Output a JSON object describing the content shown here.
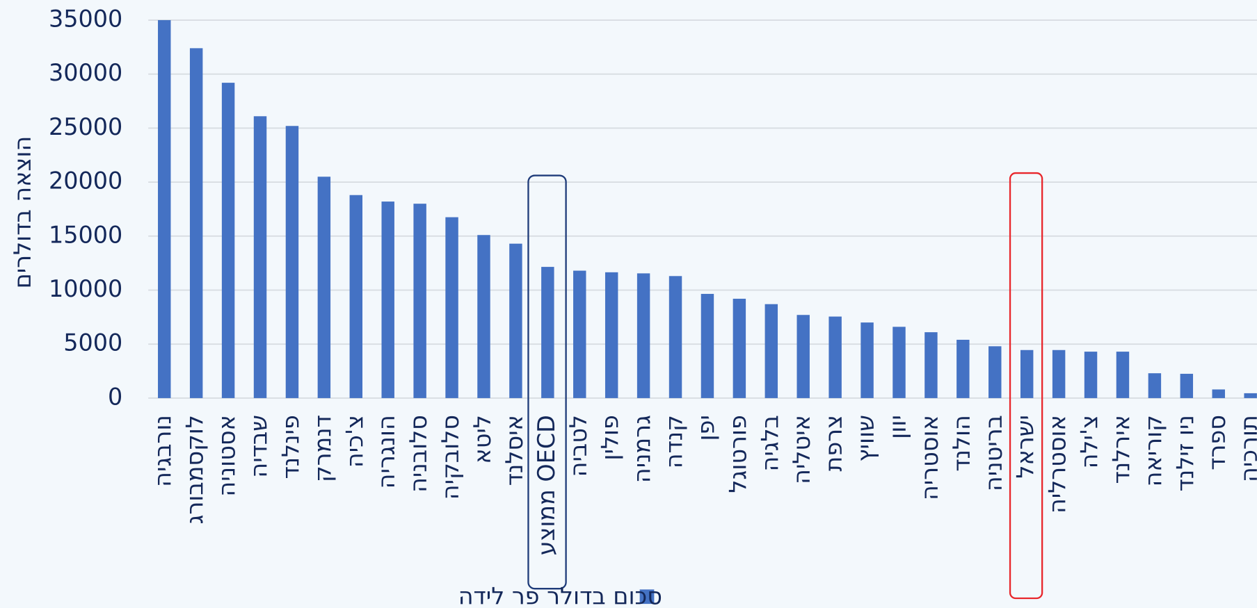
{
  "chart_data": {
    "type": "bar",
    "ylabel": "הוצאה בדולרים",
    "categories": [
      "נורבגיה",
      "לוקסמבורג",
      "אסטוניה",
      "שבדיה",
      "פינלנד",
      "דנמרק",
      "צ'כיה",
      "הונגריה",
      "סלובניה",
      "סלובקיה",
      "ליטא",
      "איסלנד",
      "ממוצע OECD",
      "לטביה",
      "פולין",
      "גרמניה",
      "קנדה",
      "יפן",
      "פורטוגל",
      "בלגיה",
      "איטליה",
      "צרפת",
      "שוויץ",
      "יוון",
      "אוסטריה",
      "הולנד",
      "בריטניה",
      "ישראל",
      "אוסטרליה",
      "צ'ילה",
      "אירלנד",
      "קוריאה",
      "ניו זילנד",
      "ספרד",
      "תורכיה"
    ],
    "series": [
      {
        "name": "סכום בדולר פר לידה",
        "color": "#4472c4",
        "values": [
          35000,
          32400,
          29200,
          26100,
          25200,
          20500,
          18800,
          18200,
          18000,
          16750,
          15100,
          14300,
          12150,
          11800,
          11650,
          11550,
          11300,
          9650,
          9200,
          8700,
          7700,
          7550,
          7000,
          6600,
          6100,
          5400,
          4800,
          4450,
          4450,
          4300,
          4300,
          2300,
          2250,
          800,
          450
        ]
      }
    ],
    "ylim": [
      0,
      35000
    ],
    "yticks": [
      0,
      5000,
      10000,
      15000,
      20000,
      25000,
      30000,
      35000
    ],
    "grid": true,
    "legend": "bottom"
  }
}
